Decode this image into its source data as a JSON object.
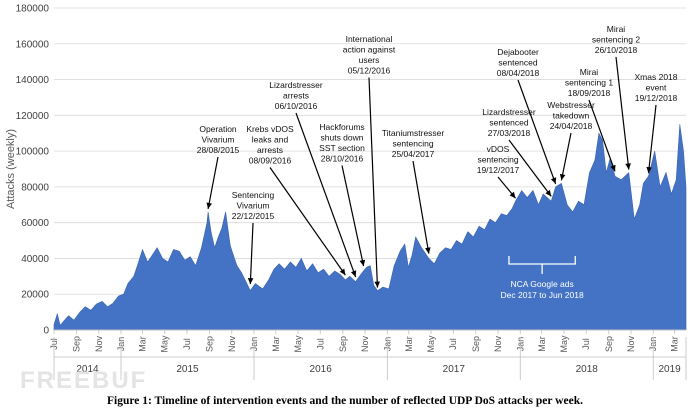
{
  "caption": "Figure 1: Timeline of intervention events and the number of reflected UDP DoS attacks per week.",
  "watermark": "FREEBUF",
  "chart_data": {
    "type": "area",
    "ylabel": "Attacks (weekly)",
    "ylim": [
      0,
      180000
    ],
    "yticks": [
      "0",
      "20000",
      "40000",
      "60000",
      "80000",
      "100000",
      "120000",
      "140000",
      "160000",
      "180000"
    ],
    "color": "#4472c4",
    "xrange": [
      "2014-07-01",
      "2019-04-01"
    ],
    "month_labels": [
      {
        "date": "2014-07-01",
        "label": "Jul"
      },
      {
        "date": "2014-09-01",
        "label": "Sep"
      },
      {
        "date": "2014-11-01",
        "label": "Nov"
      },
      {
        "date": "2015-01-01",
        "label": "Jan"
      },
      {
        "date": "2015-03-01",
        "label": "Mar"
      },
      {
        "date": "2015-05-01",
        "label": "May"
      },
      {
        "date": "2015-07-01",
        "label": "Jul"
      },
      {
        "date": "2015-09-01",
        "label": "Sep"
      },
      {
        "date": "2015-11-01",
        "label": "Nov"
      },
      {
        "date": "2016-01-01",
        "label": "Jan"
      },
      {
        "date": "2016-03-01",
        "label": "Mar"
      },
      {
        "date": "2016-05-01",
        "label": "May"
      },
      {
        "date": "2016-07-01",
        "label": "Jul"
      },
      {
        "date": "2016-09-01",
        "label": "Sep"
      },
      {
        "date": "2016-11-01",
        "label": "Nov"
      },
      {
        "date": "2017-01-01",
        "label": "Jan"
      },
      {
        "date": "2017-03-01",
        "label": "Mar"
      },
      {
        "date": "2017-05-01",
        "label": "May"
      },
      {
        "date": "2017-07-01",
        "label": "Jul"
      },
      {
        "date": "2017-09-01",
        "label": "Sep"
      },
      {
        "date": "2017-11-01",
        "label": "Nov"
      },
      {
        "date": "2018-01-01",
        "label": "Jan"
      },
      {
        "date": "2018-03-01",
        "label": "Mar"
      },
      {
        "date": "2018-05-01",
        "label": "May"
      },
      {
        "date": "2018-07-01",
        "label": "Jul"
      },
      {
        "date": "2018-09-01",
        "label": "Sep"
      },
      {
        "date": "2018-11-01",
        "label": "Nov"
      },
      {
        "date": "2019-01-01",
        "label": "Jan"
      },
      {
        "date": "2019-03-01",
        "label": "Mar"
      }
    ],
    "year_labels": [
      {
        "label": "2014",
        "from": "2014-07-01",
        "to": "2015-01-01"
      },
      {
        "label": "2015",
        "from": "2015-01-01",
        "to": "2016-01-01"
      },
      {
        "label": "2016",
        "from": "2016-01-01",
        "to": "2017-01-01"
      },
      {
        "label": "2017",
        "from": "2017-01-01",
        "to": "2018-01-01"
      },
      {
        "label": "2018",
        "from": "2018-01-01",
        "to": "2019-01-01"
      },
      {
        "label": "2019",
        "from": "2019-01-01",
        "to": "2019-04-01"
      }
    ],
    "series": [
      {
        "points": [
          [
            "2014-07-01",
            3000
          ],
          [
            "2014-07-10",
            9000
          ],
          [
            "2014-07-18",
            2500
          ],
          [
            "2014-07-28",
            5000
          ],
          [
            "2014-08-10",
            8000
          ],
          [
            "2014-08-25",
            5500
          ],
          [
            "2014-09-10",
            10000
          ],
          [
            "2014-09-25",
            13000
          ],
          [
            "2014-10-10",
            11000
          ],
          [
            "2014-10-25",
            14500
          ],
          [
            "2014-11-10",
            16000
          ],
          [
            "2014-11-25",
            13000
          ],
          [
            "2014-12-10",
            15000
          ],
          [
            "2014-12-25",
            19000
          ],
          [
            "2015-01-08",
            20000
          ],
          [
            "2015-01-20",
            26000
          ],
          [
            "2015-02-05",
            30000
          ],
          [
            "2015-02-15",
            36000
          ],
          [
            "2015-03-01",
            45000
          ],
          [
            "2015-03-15",
            38000
          ],
          [
            "2015-03-28",
            42000
          ],
          [
            "2015-04-10",
            46000
          ],
          [
            "2015-04-25",
            40000
          ],
          [
            "2015-05-10",
            38000
          ],
          [
            "2015-05-25",
            45000
          ],
          [
            "2015-06-10",
            44000
          ],
          [
            "2015-06-25",
            39000
          ],
          [
            "2015-07-10",
            41000
          ],
          [
            "2015-07-25",
            36000
          ],
          [
            "2015-08-10",
            46000
          ],
          [
            "2015-08-25",
            60000
          ],
          [
            "2015-08-28",
            66000
          ],
          [
            "2015-09-05",
            55000
          ],
          [
            "2015-09-15",
            46000
          ],
          [
            "2015-09-25",
            52000
          ],
          [
            "2015-10-05",
            57000
          ],
          [
            "2015-10-15",
            66000
          ],
          [
            "2015-10-28",
            47000
          ],
          [
            "2015-11-15",
            36000
          ],
          [
            "2015-11-28",
            32000
          ],
          [
            "2015-12-10",
            27000
          ],
          [
            "2015-12-22",
            22000
          ],
          [
            "2016-01-05",
            26000
          ],
          [
            "2016-01-25",
            23000
          ],
          [
            "2016-02-10",
            28000
          ],
          [
            "2016-02-25",
            34000
          ],
          [
            "2016-03-10",
            37000
          ],
          [
            "2016-03-25",
            34000
          ],
          [
            "2016-04-10",
            38000
          ],
          [
            "2016-04-25",
            35000
          ],
          [
            "2016-05-10",
            40000
          ],
          [
            "2016-05-25",
            33000
          ],
          [
            "2016-06-10",
            37000
          ],
          [
            "2016-06-25",
            32000
          ],
          [
            "2016-07-10",
            34000
          ],
          [
            "2016-07-25",
            30000
          ],
          [
            "2016-08-10",
            33000
          ],
          [
            "2016-08-25",
            31000
          ],
          [
            "2016-09-08",
            28000
          ],
          [
            "2016-09-20",
            30000
          ],
          [
            "2016-10-06",
            27000
          ],
          [
            "2016-10-20",
            31000
          ],
          [
            "2016-10-28",
            33000
          ],
          [
            "2016-11-05",
            35000
          ],
          [
            "2016-11-15",
            36000
          ],
          [
            "2016-11-25",
            25000
          ],
          [
            "2016-12-05",
            22000
          ],
          [
            "2016-12-20",
            24000
          ],
          [
            "2017-01-05",
            23000
          ],
          [
            "2017-01-20",
            36000
          ],
          [
            "2017-02-05",
            44000
          ],
          [
            "2017-02-18",
            48000
          ],
          [
            "2017-02-28",
            35000
          ],
          [
            "2017-03-10",
            42000
          ],
          [
            "2017-03-20",
            52000
          ],
          [
            "2017-04-05",
            46000
          ],
          [
            "2017-04-25",
            40000
          ],
          [
            "2017-05-10",
            37000
          ],
          [
            "2017-05-25",
            43000
          ],
          [
            "2017-06-10",
            46000
          ],
          [
            "2017-06-25",
            45000
          ],
          [
            "2017-07-10",
            50000
          ],
          [
            "2017-07-25",
            48000
          ],
          [
            "2017-08-10",
            55000
          ],
          [
            "2017-08-25",
            52000
          ],
          [
            "2017-09-10",
            58000
          ],
          [
            "2017-09-25",
            56000
          ],
          [
            "2017-10-10",
            62000
          ],
          [
            "2017-10-25",
            60000
          ],
          [
            "2017-11-10",
            65000
          ],
          [
            "2017-11-25",
            64000
          ],
          [
            "2017-12-10",
            68000
          ],
          [
            "2017-12-19",
            72000
          ],
          [
            "2018-01-05",
            78000
          ],
          [
            "2018-01-20",
            74000
          ],
          [
            "2018-02-05",
            78000
          ],
          [
            "2018-02-20",
            70000
          ],
          [
            "2018-03-05",
            76000
          ],
          [
            "2018-03-27",
            72000
          ],
          [
            "2018-04-08",
            80000
          ],
          [
            "2018-04-24",
            82000
          ],
          [
            "2018-05-10",
            70000
          ],
          [
            "2018-05-25",
            66000
          ],
          [
            "2018-06-10",
            72000
          ],
          [
            "2018-06-25",
            70000
          ],
          [
            "2018-07-10",
            88000
          ],
          [
            "2018-07-25",
            95000
          ],
          [
            "2018-08-05",
            110000
          ],
          [
            "2018-08-15",
            106000
          ],
          [
            "2018-08-25",
            88000
          ],
          [
            "2018-09-05",
            96000
          ],
          [
            "2018-09-18",
            86000
          ],
          [
            "2018-10-05",
            84000
          ],
          [
            "2018-10-26",
            88000
          ],
          [
            "2018-11-10",
            62000
          ],
          [
            "2018-11-25",
            70000
          ],
          [
            "2018-12-05",
            82000
          ],
          [
            "2018-12-19",
            86000
          ],
          [
            "2019-01-05",
            100000
          ],
          [
            "2019-01-20",
            80000
          ],
          [
            "2019-02-05",
            88000
          ],
          [
            "2019-02-20",
            76000
          ],
          [
            "2019-03-05",
            84000
          ],
          [
            "2019-03-15",
            115000
          ],
          [
            "2019-03-25",
            100000
          ],
          [
            "2019-04-01",
            80000
          ]
        ]
      }
    ],
    "annotations": [
      {
        "lines": [
          "Operation",
          "Vivarium",
          "28/08/2015"
        ],
        "date": "2015-08-28",
        "value": 66000
      },
      {
        "lines": [
          "Sentencing",
          "Vivarium",
          "22/12/2015"
        ],
        "date": "2015-12-22",
        "value": 24000
      },
      {
        "lines": [
          "Krebs vDOS",
          "leaks and",
          "arrests",
          "08/09/2016"
        ],
        "date": "2016-09-08",
        "value": 29000
      },
      {
        "lines": [
          "Lizardstresser",
          "arrests",
          "06/10/2016"
        ],
        "date": "2016-10-06",
        "value": 28000
      },
      {
        "lines": [
          "Hackforums",
          "shuts down",
          "SST section",
          "28/10/2016"
        ],
        "date": "2016-10-28",
        "value": 34000
      },
      {
        "lines": [
          "International",
          "action against",
          "users",
          "05/12/2016"
        ],
        "date": "2016-12-05",
        "value": 22000
      },
      {
        "lines": [
          "Titaniumstresser",
          "sentencing",
          "25/04/2017"
        ],
        "date": "2017-04-25",
        "value": 41000
      },
      {
        "lines": [
          "vDOS",
          "sentencing",
          "19/12/2017"
        ],
        "date": "2017-12-19",
        "value": 72000
      },
      {
        "lines": [
          "Lizardstresser",
          "sentenced",
          "27/03/2018"
        ],
        "date": "2018-03-27",
        "value": 73000
      },
      {
        "lines": [
          "Dejabooter",
          "sentenced",
          "08/04/2018"
        ],
        "date": "2018-04-08",
        "value": 80000
      },
      {
        "lines": [
          "Webstresser",
          "takedown",
          "24/04/2018"
        ],
        "date": "2018-04-24",
        "value": 82000
      },
      {
        "lines": [
          "Mirai",
          "sentencing 1",
          "18/09/2018"
        ],
        "date": "2018-09-18",
        "value": 87000
      },
      {
        "lines": [
          "Mirai",
          "sentencing 2",
          "26/10/2018"
        ],
        "date": "2018-10-26",
        "value": 88000
      },
      {
        "lines": [
          "Xmas 2018",
          "event",
          "19/12/2018"
        ],
        "date": "2018-12-19",
        "value": 86000
      }
    ],
    "bracket": {
      "lines": [
        "NCA Google ads",
        "Dec 2017 to Jun 2018"
      ],
      "from": "2017-12-01",
      "to": "2018-06-01"
    }
  }
}
